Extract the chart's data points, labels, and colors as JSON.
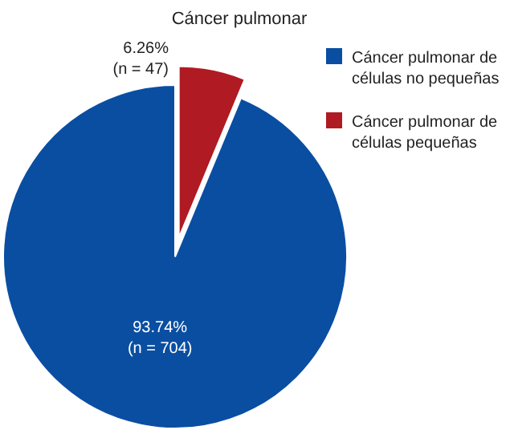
{
  "chart_data": {
    "type": "pie",
    "title": "Cáncer pulmonar",
    "categories": [
      "Cáncer pulmonar de células no pequeñas",
      "Cáncer pulmonar de células pequeñas"
    ],
    "values": [
      704,
      47
    ],
    "value_labels": [
      "93.74% (n = 704)",
      "6.26% (n = 47)"
    ],
    "colors": [
      "#0a4ea2",
      "#b01a22"
    ],
    "legend": "right"
  }
}
